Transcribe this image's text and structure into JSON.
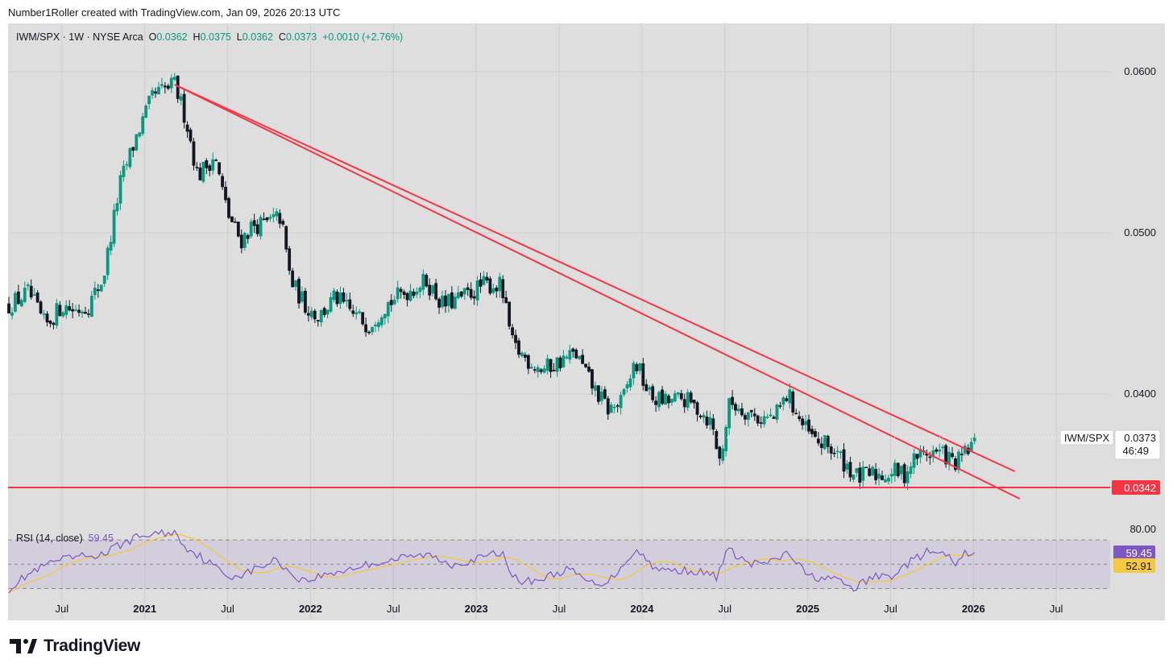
{
  "header": {
    "text": "Number1Roller created with TradingView.com, Jan 09, 2026 20:13 UTC"
  },
  "legend": {
    "symbol": "IWM/SPX · 1W · NYSE Arca",
    "o_label": "O",
    "o": "0.0362",
    "h_label": "H",
    "h": "0.0375",
    "l_label": "L",
    "l": "0.0362",
    "c_label": "C",
    "c": "0.0373",
    "change": "+0.0010 (+2.76%)"
  },
  "rsi_legend": {
    "label": "RSI (14, close)",
    "value": "59.45"
  },
  "price_badge": {
    "symbol": "IWM/SPX",
    "price": "0.0373",
    "countdown": "46:49"
  },
  "support_badge": {
    "price": "0.0342"
  },
  "rsi_badges": {
    "rsi": "59.45",
    "ma": "52.91",
    "upper": "80.00"
  },
  "brand": {
    "name": "TradingView"
  },
  "colors": {
    "up": "#089981",
    "down": "#131722",
    "trend": "#f23645",
    "rsi": "#7e57c2",
    "rsi_ma": "#f5c842",
    "bg": "#dedede"
  },
  "chart_data": {
    "type": "candlestick",
    "title": "IWM/SPX · 1W · NYSE Arca",
    "ylim": [
      0.0318,
      0.063
    ],
    "price_ticks": [
      "0.0600",
      "0.0500",
      "0.0400"
    ],
    "price_tick_values": [
      0.06,
      0.05,
      0.04
    ],
    "x_ticks": [
      {
        "label": "Jul",
        "t": 2020.5,
        "bold": false
      },
      {
        "label": "2021",
        "t": 2021.0,
        "bold": true
      },
      {
        "label": "Jul",
        "t": 2021.5,
        "bold": false
      },
      {
        "label": "2022",
        "t": 2022.0,
        "bold": true
      },
      {
        "label": "Jul",
        "t": 2022.5,
        "bold": false
      },
      {
        "label": "2023",
        "t": 2023.0,
        "bold": true
      },
      {
        "label": "Jul",
        "t": 2023.5,
        "bold": false
      },
      {
        "label": "2024",
        "t": 2024.0,
        "bold": true
      },
      {
        "label": "Jul",
        "t": 2024.5,
        "bold": false
      },
      {
        "label": "2025",
        "t": 2025.0,
        "bold": true
      },
      {
        "label": "Jul",
        "t": 2025.5,
        "bold": false
      },
      {
        "label": "2026",
        "t": 2026.0,
        "bold": true
      },
      {
        "label": "Jul",
        "t": 2026.5,
        "bold": false
      }
    ],
    "x_range": [
      2020.175,
      2026.825
    ],
    "anchors": [
      [
        2020.18,
        0.0455
      ],
      [
        2020.3,
        0.0463
      ],
      [
        2020.4,
        0.0442
      ],
      [
        2020.5,
        0.0455
      ],
      [
        2020.58,
        0.0452
      ],
      [
        2020.66,
        0.0455
      ],
      [
        2020.75,
        0.0472
      ],
      [
        2020.85,
        0.053
      ],
      [
        2020.95,
        0.056
      ],
      [
        2021.05,
        0.0585
      ],
      [
        2021.18,
        0.0592
      ],
      [
        2021.25,
        0.057
      ],
      [
        2021.32,
        0.0535
      ],
      [
        2021.42,
        0.0548
      ],
      [
        2021.5,
        0.0512
      ],
      [
        2021.58,
        0.0495
      ],
      [
        2021.65,
        0.0505
      ],
      [
        2021.72,
        0.0505
      ],
      [
        2021.82,
        0.051
      ],
      [
        2021.88,
        0.047
      ],
      [
        2021.97,
        0.0455
      ],
      [
        2022.05,
        0.0448
      ],
      [
        2022.15,
        0.046
      ],
      [
        2022.25,
        0.045
      ],
      [
        2022.35,
        0.0443
      ],
      [
        2022.45,
        0.0455
      ],
      [
        2022.55,
        0.0462
      ],
      [
        2022.7,
        0.047
      ],
      [
        2022.8,
        0.0455
      ],
      [
        2022.92,
        0.046
      ],
      [
        2023.05,
        0.0468
      ],
      [
        2023.15,
        0.0467
      ],
      [
        2023.22,
        0.043
      ],
      [
        2023.3,
        0.0422
      ],
      [
        2023.4,
        0.0415
      ],
      [
        2023.5,
        0.042
      ],
      [
        2023.6,
        0.0425
      ],
      [
        2023.7,
        0.0405
      ],
      [
        2023.8,
        0.039
      ],
      [
        2023.88,
        0.0395
      ],
      [
        2023.96,
        0.042
      ],
      [
        2024.05,
        0.0398
      ],
      [
        2024.15,
        0.0395
      ],
      [
        2024.25,
        0.0397
      ],
      [
        2024.35,
        0.039
      ],
      [
        2024.42,
        0.0382
      ],
      [
        2024.47,
        0.0358
      ],
      [
        2024.53,
        0.0395
      ],
      [
        2024.62,
        0.039
      ],
      [
        2024.7,
        0.0385
      ],
      [
        2024.8,
        0.0385
      ],
      [
        2024.88,
        0.04
      ],
      [
        2024.97,
        0.038
      ],
      [
        2025.05,
        0.037
      ],
      [
        2025.12,
        0.0368
      ],
      [
        2025.2,
        0.036
      ],
      [
        2025.3,
        0.0348
      ],
      [
        2025.38,
        0.035
      ],
      [
        2025.46,
        0.035
      ],
      [
        2025.52,
        0.0352
      ],
      [
        2025.58,
        0.035
      ],
      [
        2025.66,
        0.0362
      ],
      [
        2025.76,
        0.0364
      ],
      [
        2025.82,
        0.0363
      ],
      [
        2025.89,
        0.0356
      ],
      [
        2025.96,
        0.0364
      ],
      [
        2026.02,
        0.0373
      ]
    ],
    "trendlines": [
      {
        "from": [
          2021.18,
          0.0592
        ],
        "to": [
          2026.25,
          0.0352
        ]
      },
      {
        "from": [
          2021.18,
          0.0592
        ],
        "to": [
          2026.28,
          0.0335
        ]
      },
      {
        "from": [
          2020.175,
          0.0342
        ],
        "to": [
          2026.825,
          0.0342
        ]
      }
    ],
    "last_price": 0.0373,
    "support": 0.0342,
    "rsi": {
      "ylim": [
        25,
        80
      ],
      "upper": 70,
      "middle": 50,
      "lower": 30,
      "current": 59.45,
      "ma_current": 52.91,
      "anchors": [
        [
          2020.18,
          30
        ],
        [
          2020.3,
          42
        ],
        [
          2020.45,
          52
        ],
        [
          2020.6,
          56
        ],
        [
          2020.75,
          58
        ],
        [
          2020.85,
          66
        ],
        [
          2020.95,
          72
        ],
        [
          2021.05,
          75
        ],
        [
          2021.18,
          76
        ],
        [
          2021.25,
          64
        ],
        [
          2021.35,
          55
        ],
        [
          2021.5,
          40
        ],
        [
          2021.6,
          42
        ],
        [
          2021.7,
          48
        ],
        [
          2021.8,
          54
        ],
        [
          2021.88,
          42
        ],
        [
          2021.97,
          36
        ],
        [
          2022.05,
          40
        ],
        [
          2022.2,
          45
        ],
        [
          2022.35,
          50
        ],
        [
          2022.55,
          55
        ],
        [
          2022.7,
          58
        ],
        [
          2022.85,
          50
        ],
        [
          2023.0,
          54
        ],
        [
          2023.15,
          60
        ],
        [
          2023.25,
          35
        ],
        [
          2023.4,
          38
        ],
        [
          2023.55,
          46
        ],
        [
          2023.7,
          34
        ],
        [
          2023.8,
          36
        ],
        [
          2023.96,
          62
        ],
        [
          2024.1,
          45
        ],
        [
          2024.3,
          45
        ],
        [
          2024.45,
          40
        ],
        [
          2024.52,
          62
        ],
        [
          2024.65,
          50
        ],
        [
          2024.8,
          52
        ],
        [
          2024.88,
          60
        ],
        [
          2025.0,
          40
        ],
        [
          2025.15,
          38
        ],
        [
          2025.28,
          30
        ],
        [
          2025.4,
          40
        ],
        [
          2025.5,
          40
        ],
        [
          2025.62,
          52
        ],
        [
          2025.72,
          60
        ],
        [
          2025.82,
          58
        ],
        [
          2025.9,
          50
        ],
        [
          2025.96,
          60
        ],
        [
          2026.02,
          59.45
        ]
      ]
    }
  }
}
